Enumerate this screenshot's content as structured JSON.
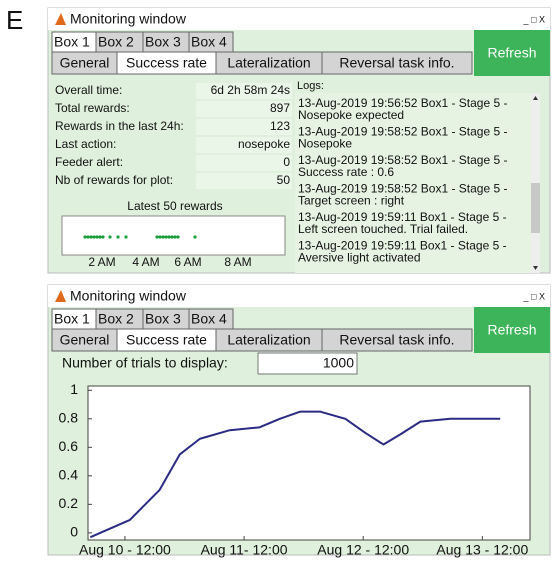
{
  "panel_label": "E",
  "windows": [
    {
      "title": "Monitoring window",
      "controls": "_ □ X",
      "box_tabs": [
        "Box 1",
        "Box 2",
        "Box 3",
        "Box 4"
      ],
      "tabs": [
        "General",
        "Success rate",
        "Lateralization",
        "Reversal task info."
      ],
      "refresh": "Refresh",
      "fields": [
        {
          "label": "Overall time:",
          "value": "6d 2h 58m 24s"
        },
        {
          "label": "Total rewards:",
          "value": 897
        },
        {
          "label": "Rewards in the last 24h:",
          "value": 123
        },
        {
          "label": "Last action:",
          "value": "nosepoke"
        },
        {
          "label": "Feeder alert:",
          "value": 0
        },
        {
          "label": "Nb of rewards for plot:",
          "value": 50
        }
      ],
      "rewards": {
        "title": "Latest 50 rewards",
        "axis": [
          "2 AM",
          "4 AM",
          "6 AM",
          "8 AM"
        ]
      },
      "logs": {
        "title": "Logs:",
        "entries": [
          [
            "13-Aug-2019 19:56:52 Box1 - Stage 5 -",
            "Nosepoke expected"
          ],
          [
            "13-Aug-2019 19:58:52 Box1 - Stage 5 -",
            "Nosepoke"
          ],
          [
            "13-Aug-2019 19:58:52 Box1 - Stage 5 -",
            "Success rate : 0.6"
          ],
          [
            "13-Aug-2019 19:58:52 Box1 - Stage 5 -",
            "Target screen : right"
          ],
          [
            "13-Aug-2019 19:59:11 Box1 - Stage 5 -",
            "Left screen touched. Trial failed."
          ],
          [
            "13-Aug-2019 19:59:11 Box1 - Stage 5 -",
            "Aversive light activated"
          ]
        ]
      }
    },
    {
      "title": "Monitoring window",
      "controls": "_ □ X",
      "box_tabs": [
        "Box 1",
        "Box 2",
        "Box 3",
        "Box 4"
      ],
      "tabs": [
        "General",
        "Success rate",
        "Lateralization",
        "Reversal task info."
      ],
      "refresh": "Refresh",
      "trials": {
        "label": "Number of trials to display:",
        "value": 1000
      },
      "chart_data": {
        "type": "line",
        "x": [
          -0.29,
          0.04,
          0.29,
          0.46,
          0.63,
          0.88,
          1.13,
          1.3,
          1.47,
          1.64,
          1.85,
          2.02,
          2.17,
          2.31,
          2.48,
          2.73,
          3.15
        ],
        "values": [
          -0.03,
          0.09,
          0.3,
          0.55,
          0.66,
          0.72,
          0.74,
          0.8,
          0.85,
          0.85,
          0.8,
          0.7,
          0.62,
          0.69,
          0.78,
          0.8,
          0.8
        ],
        "color": "#2b2b84",
        "xlim": [
          -0.31,
          3.4
        ],
        "ylim": [
          -0.05,
          1.03
        ],
        "xticks": [
          {
            "value": 0,
            "label": "Aug 10 - 12:00"
          },
          {
            "value": 1,
            "label": "Aug 11- 12:00"
          },
          {
            "value": 2,
            "label": "Aug 12 - 12:00"
          },
          {
            "value": 3,
            "label": "Aug 13 - 12:00"
          }
        ],
        "yticks": [
          0,
          0.2,
          0.4,
          0.6,
          0.8,
          1
        ]
      }
    }
  ]
}
